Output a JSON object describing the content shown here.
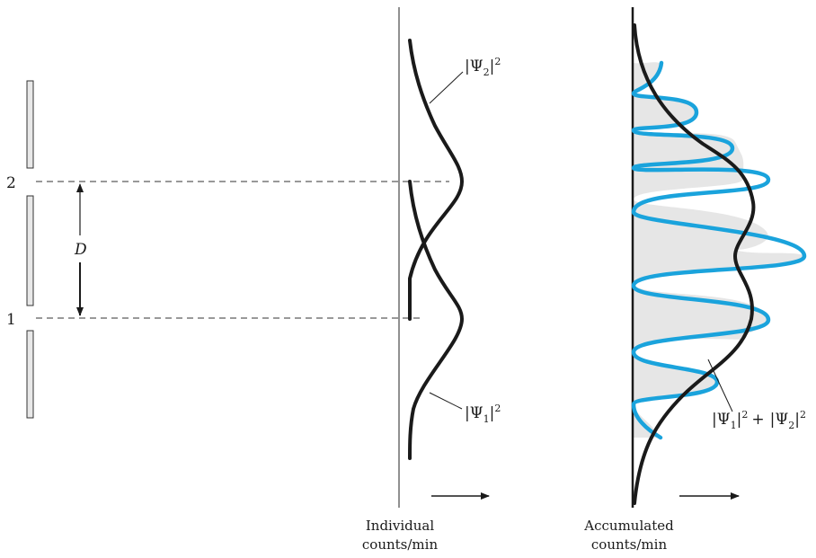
{
  "slits": {
    "label_2": "2",
    "label_1": "1",
    "separation_label": "D"
  },
  "individual": {
    "curve_top_label": {
      "prefix": "|",
      "greek": "Ψ",
      "sub": "2",
      "close": "|",
      "sup": "2"
    },
    "curve_bottom_label": {
      "prefix": "|",
      "greek": "Ψ",
      "sub": "1",
      "close": "|",
      "sup": "2"
    },
    "axis_caption_line1": "Individual",
    "axis_caption_line2": "counts/min"
  },
  "accumulated": {
    "sum_label": {
      "a_prefix": "|",
      "a_greek": "Ψ",
      "a_sub": "1",
      "a_close": "|",
      "a_sup": "2",
      "plus": "+",
      "b_prefix": "|",
      "b_greek": "Ψ",
      "b_sub": "2",
      "b_close": "|",
      "b_sup": "2"
    },
    "axis_caption_line1": "Accumulated",
    "axis_caption_line2": "counts/min"
  },
  "colors": {
    "ink": "#1a1a1a",
    "interference": "#1aa3dc",
    "fill": "#e6e6e6",
    "slit_fill": "#e8e8e8"
  }
}
